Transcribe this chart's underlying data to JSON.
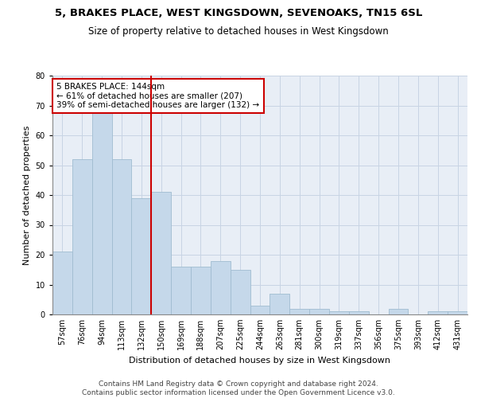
{
  "title1": "5, BRAKES PLACE, WEST KINGSDOWN, SEVENOAKS, TN15 6SL",
  "title2": "Size of property relative to detached houses in West Kingsdown",
  "xlabel": "Distribution of detached houses by size in West Kingsdown",
  "ylabel": "Number of detached properties",
  "bar_labels": [
    "57sqm",
    "76sqm",
    "94sqm",
    "113sqm",
    "132sqm",
    "150sqm",
    "169sqm",
    "188sqm",
    "207sqm",
    "225sqm",
    "244sqm",
    "263sqm",
    "281sqm",
    "300sqm",
    "319sqm",
    "337sqm",
    "356sqm",
    "375sqm",
    "393sqm",
    "412sqm",
    "431sqm"
  ],
  "bar_values": [
    21,
    52,
    68,
    52,
    39,
    41,
    16,
    16,
    18,
    15,
    3,
    7,
    2,
    2,
    1,
    1,
    0,
    2,
    0,
    1,
    1
  ],
  "bar_color": "#c5d8ea",
  "bar_edge_color": "#a0bcd0",
  "vline_x": 4.5,
  "vline_color": "#cc0000",
  "annotation_text": "5 BRAKES PLACE: 144sqm\n← 61% of detached houses are smaller (207)\n39% of semi-detached houses are larger (132) →",
  "annotation_box_color": "#ffffff",
  "annotation_box_edge": "#cc0000",
  "ylim": [
    0,
    80
  ],
  "yticks": [
    0,
    10,
    20,
    30,
    40,
    50,
    60,
    70,
    80
  ],
  "grid_color": "#c8d4e4",
  "bg_color": "#e8eef6",
  "footer": "Contains HM Land Registry data © Crown copyright and database right 2024.\nContains public sector information licensed under the Open Government Licence v3.0.",
  "title1_fontsize": 9.5,
  "title2_fontsize": 8.5,
  "xlabel_fontsize": 8,
  "ylabel_fontsize": 8,
  "tick_fontsize": 7,
  "annotation_fontsize": 7.5,
  "footer_fontsize": 6.5
}
